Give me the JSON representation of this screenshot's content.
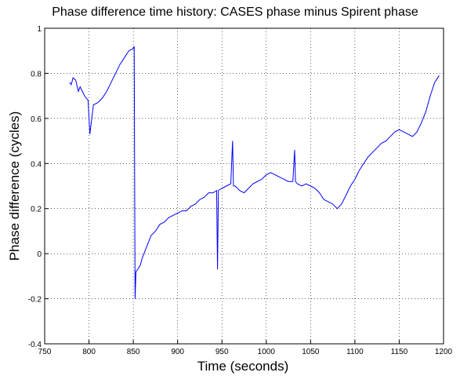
{
  "chart_data": {
    "type": "line",
    "title": "Phase difference time history: CASES phase minus Spirent phase",
    "xlabel": "Time (seconds)",
    "ylabel": "Phase difference (cycles)",
    "x": [
      778,
      780,
      782,
      785,
      788,
      790,
      795,
      799,
      801,
      805,
      810,
      815,
      820,
      825,
      830,
      835,
      840,
      845,
      850,
      851,
      852,
      853,
      855,
      858,
      860,
      865,
      870,
      875,
      880,
      885,
      890,
      895,
      900,
      905,
      910,
      915,
      920,
      925,
      930,
      935,
      940,
      944,
      945,
      946,
      950,
      955,
      960,
      962,
      963,
      965,
      970,
      975,
      980,
      985,
      990,
      995,
      1000,
      1005,
      1010,
      1015,
      1020,
      1025,
      1030,
      1032,
      1033,
      1035,
      1040,
      1045,
      1050,
      1055,
      1060,
      1065,
      1070,
      1075,
      1080,
      1085,
      1090,
      1095,
      1100,
      1105,
      1110,
      1115,
      1120,
      1125,
      1130,
      1135,
      1140,
      1145,
      1150,
      1155,
      1160,
      1165,
      1170,
      1175,
      1180,
      1185,
      1190,
      1195
    ],
    "series": [
      {
        "name": "phase difference",
        "color": "#0000ff",
        "values": [
          0.76,
          0.75,
          0.78,
          0.77,
          0.72,
          0.74,
          0.7,
          0.68,
          0.53,
          0.66,
          0.67,
          0.69,
          0.72,
          0.76,
          0.8,
          0.84,
          0.87,
          0.9,
          0.91,
          0.92,
          -0.2,
          -0.08,
          -0.07,
          -0.05,
          -0.02,
          0.03,
          0.08,
          0.1,
          0.13,
          0.14,
          0.16,
          0.17,
          0.18,
          0.19,
          0.19,
          0.21,
          0.22,
          0.24,
          0.25,
          0.27,
          0.27,
          0.28,
          -0.07,
          0.28,
          0.29,
          0.3,
          0.31,
          0.5,
          0.3,
          0.3,
          0.28,
          0.27,
          0.29,
          0.31,
          0.32,
          0.33,
          0.35,
          0.36,
          0.35,
          0.34,
          0.33,
          0.32,
          0.32,
          0.46,
          0.32,
          0.31,
          0.3,
          0.31,
          0.3,
          0.29,
          0.27,
          0.24,
          0.23,
          0.22,
          0.2,
          0.22,
          0.26,
          0.3,
          0.33,
          0.37,
          0.4,
          0.43,
          0.45,
          0.47,
          0.49,
          0.5,
          0.52,
          0.54,
          0.55,
          0.54,
          0.53,
          0.52,
          0.54,
          0.58,
          0.63,
          0.7,
          0.76,
          0.79
        ]
      }
    ],
    "xlim": [
      750,
      1200
    ],
    "xticks": [
      750,
      800,
      850,
      900,
      950,
      1000,
      1050,
      1100,
      1150,
      1200
    ],
    "ylim": [
      -0.4,
      1
    ],
    "yticks": [
      -0.4,
      -0.2,
      0,
      0.2,
      0.4,
      0.6,
      0.8,
      1
    ],
    "grid": true
  }
}
